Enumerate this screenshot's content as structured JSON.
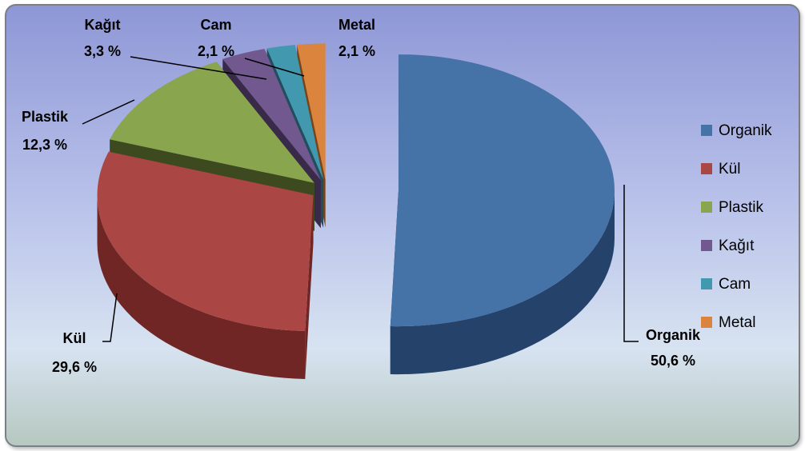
{
  "chart_data": {
    "type": "pie",
    "title": "",
    "style": "3d-exploded",
    "legend_position": "right",
    "slices": [
      {
        "label": "Organik",
        "value": 50.6,
        "value_text": "50,6 %",
        "color": "#4572a7",
        "side": "#24426a"
      },
      {
        "label": "Kül",
        "value": 29.6,
        "value_text": "29,6 %",
        "color": "#aa4643",
        "side": "#6f2624"
      },
      {
        "label": "Plastik",
        "value": 12.3,
        "value_text": "12,3 %",
        "color": "#89a54e",
        "side": "#3d4a1f"
      },
      {
        "label": "Kağıt",
        "value": 3.3,
        "value_text": "3,3 %",
        "color": "#71588f",
        "side": "#392a4a"
      },
      {
        "label": "Cam",
        "value": 2.1,
        "value_text": "2,1 %",
        "color": "#4198af",
        "side": "#1f4f5c"
      },
      {
        "label": "Metal",
        "value": 2.1,
        "value_text": "2,1 %",
        "color": "#db843d",
        "side": "#7a4415"
      }
    ],
    "legend": [
      "Organik",
      "Kül",
      "Plastik",
      "Kağıt",
      "Cam",
      "Metal"
    ]
  }
}
